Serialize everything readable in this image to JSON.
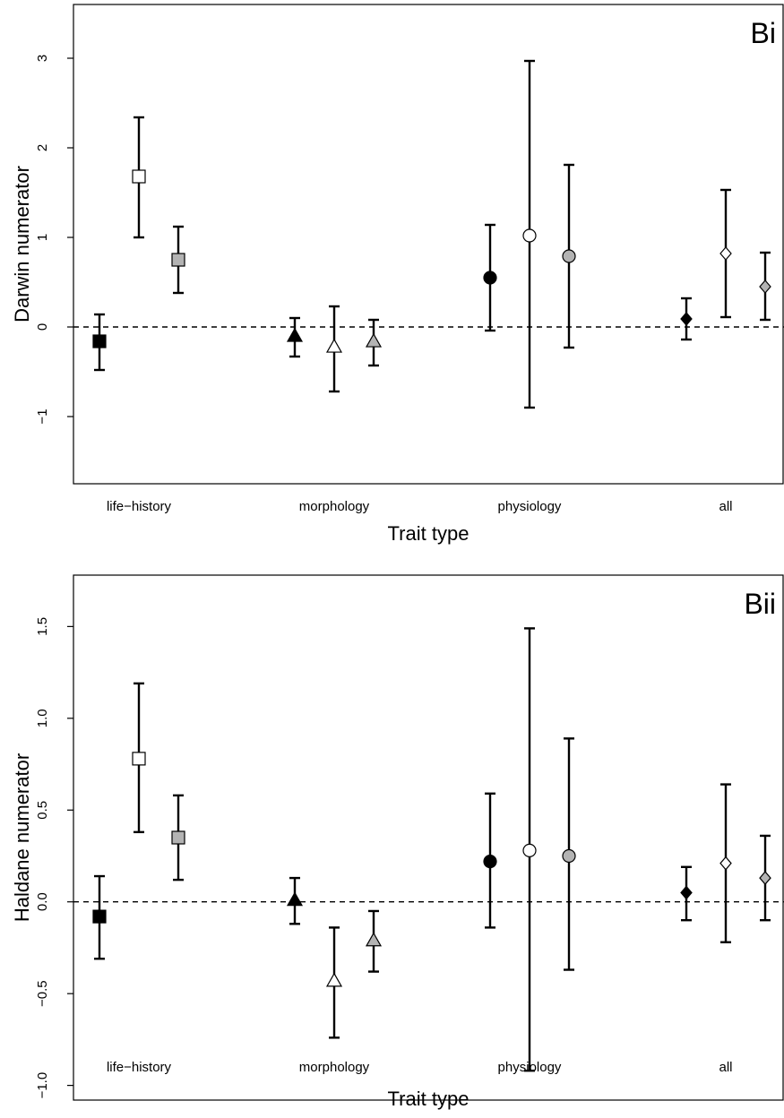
{
  "chart_data": [
    {
      "type": "scatter",
      "panel_label": "Bi",
      "xlabel": "Trait type",
      "ylabel": "Darwin numerator",
      "categories": [
        "life−history",
        "morphology",
        "physiology",
        "all"
      ],
      "ylim": [
        -1.75,
        3.6
      ],
      "yticks": [
        "−1",
        "0",
        "1",
        "2",
        "3"
      ],
      "ytick_values": [
        -1,
        0,
        1,
        2,
        3
      ],
      "reference_line": 0,
      "points": [
        {
          "category": "life−history",
          "marker": "square",
          "fill": "black",
          "y": -0.16,
          "lo": -0.48,
          "hi": 0.14
        },
        {
          "category": "life−history",
          "marker": "square",
          "fill": "white",
          "y": 1.68,
          "lo": 1.0,
          "hi": 2.34
        },
        {
          "category": "life−history",
          "marker": "square",
          "fill": "grey",
          "y": 0.75,
          "lo": 0.38,
          "hi": 1.12
        },
        {
          "category": "morphology",
          "marker": "triangle",
          "fill": "black",
          "y": -0.1,
          "lo": -0.33,
          "hi": 0.1
        },
        {
          "category": "morphology",
          "marker": "triangle",
          "fill": "white",
          "y": -0.22,
          "lo": -0.72,
          "hi": 0.23
        },
        {
          "category": "morphology",
          "marker": "triangle",
          "fill": "grey",
          "y": -0.16,
          "lo": -0.43,
          "hi": 0.08
        },
        {
          "category": "physiology",
          "marker": "circle",
          "fill": "black",
          "y": 0.55,
          "lo": -0.04,
          "hi": 1.14
        },
        {
          "category": "physiology",
          "marker": "circle",
          "fill": "white",
          "y": 1.02,
          "lo": -0.9,
          "hi": 2.97
        },
        {
          "category": "physiology",
          "marker": "circle",
          "fill": "grey",
          "y": 0.79,
          "lo": -0.23,
          "hi": 1.81
        },
        {
          "category": "all",
          "marker": "diamond",
          "fill": "black",
          "y": 0.09,
          "lo": -0.14,
          "hi": 0.32
        },
        {
          "category": "all",
          "marker": "diamond",
          "fill": "white",
          "y": 0.82,
          "lo": 0.11,
          "hi": 1.53
        },
        {
          "category": "all",
          "marker": "diamond",
          "fill": "grey",
          "y": 0.45,
          "lo": 0.08,
          "hi": 0.83
        }
      ]
    },
    {
      "type": "scatter",
      "panel_label": "Bii",
      "xlabel": "Trait type",
      "ylabel": "Haldane numerator",
      "categories": [
        "life−history",
        "morphology",
        "physiology",
        "all"
      ],
      "ylim": [
        -1.08,
        1.78
      ],
      "yticks": [
        "−1.0",
        "−0.5",
        "0.0",
        "0.5",
        "1.0",
        "1.5"
      ],
      "ytick_values": [
        -1.0,
        -0.5,
        0.0,
        0.5,
        1.0,
        1.5
      ],
      "reference_line": 0,
      "points": [
        {
          "category": "life−history",
          "marker": "square",
          "fill": "black",
          "y": -0.08,
          "lo": -0.31,
          "hi": 0.14
        },
        {
          "category": "life−history",
          "marker": "square",
          "fill": "white",
          "y": 0.78,
          "lo": 0.38,
          "hi": 1.19
        },
        {
          "category": "life−history",
          "marker": "square",
          "fill": "grey",
          "y": 0.35,
          "lo": 0.12,
          "hi": 0.58
        },
        {
          "category": "morphology",
          "marker": "triangle",
          "fill": "black",
          "y": 0.01,
          "lo": -0.12,
          "hi": 0.13
        },
        {
          "category": "morphology",
          "marker": "triangle",
          "fill": "white",
          "y": -0.43,
          "lo": -0.74,
          "hi": -0.14
        },
        {
          "category": "morphology",
          "marker": "triangle",
          "fill": "grey",
          "y": -0.21,
          "lo": -0.38,
          "hi": -0.05
        },
        {
          "category": "physiology",
          "marker": "circle",
          "fill": "black",
          "y": 0.22,
          "lo": -0.14,
          "hi": 0.59
        },
        {
          "category": "physiology",
          "marker": "circle",
          "fill": "white",
          "y": 0.28,
          "lo": -0.92,
          "hi": 1.49
        },
        {
          "category": "physiology",
          "marker": "circle",
          "fill": "grey",
          "y": 0.25,
          "lo": -0.37,
          "hi": 0.89
        },
        {
          "category": "all",
          "marker": "diamond",
          "fill": "black",
          "y": 0.05,
          "lo": -0.1,
          "hi": 0.19
        },
        {
          "category": "all",
          "marker": "diamond",
          "fill": "white",
          "y": 0.21,
          "lo": -0.22,
          "hi": 0.64
        },
        {
          "category": "all",
          "marker": "diamond",
          "fill": "grey",
          "y": 0.13,
          "lo": -0.1,
          "hi": 0.36
        }
      ]
    }
  ],
  "colors": {
    "black": "#000000",
    "white": "#ffffff",
    "grey": "#b3b3b3"
  }
}
